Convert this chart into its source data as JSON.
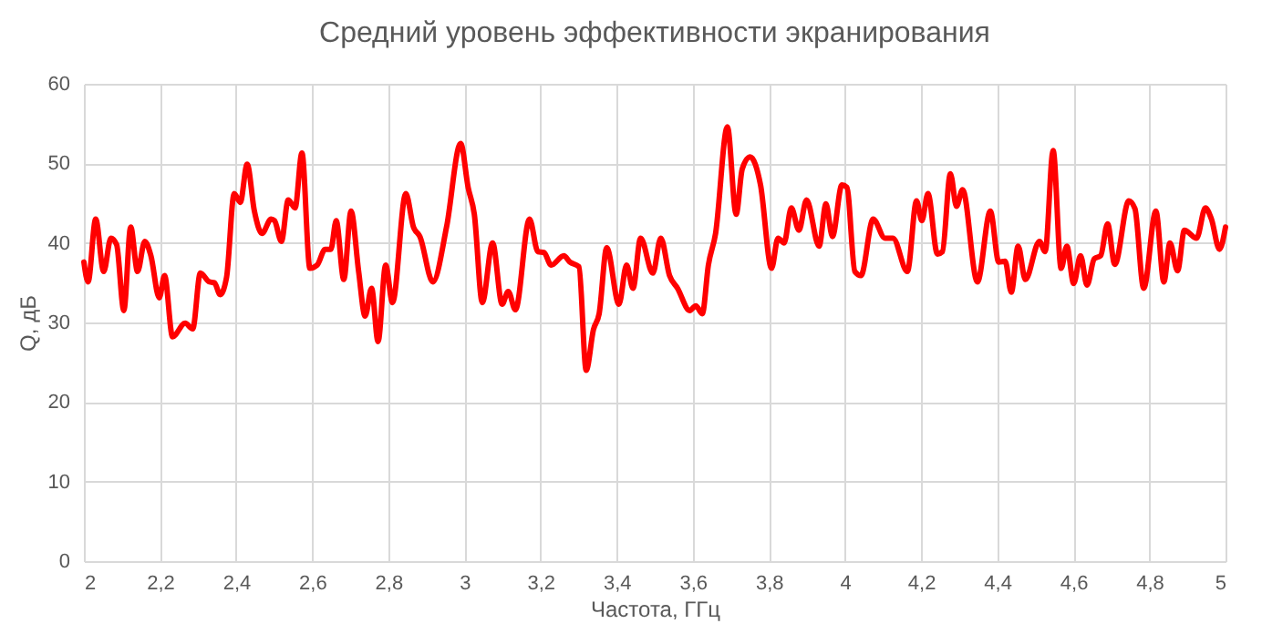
{
  "chart_data": {
    "type": "line",
    "title": "Средний уровень эффективности экранирования",
    "xlabel": "Частота, ГГц",
    "ylabel": "Q, дБ",
    "xlim": [
      2,
      5
    ],
    "ylim": [
      0,
      60
    ],
    "xticks": [
      2,
      {
        "value": 2.2,
        "label": "2,2"
      },
      {
        "value": 2.4,
        "label": "2,4"
      },
      {
        "value": 2.6,
        "label": "2,6"
      },
      {
        "value": 2.8,
        "label": "2,8"
      },
      3,
      {
        "value": 3.2,
        "label": "3,2"
      },
      {
        "value": 3.4,
        "label": "3,4"
      },
      {
        "value": 3.6,
        "label": "3,6"
      },
      {
        "value": 3.8,
        "label": "3,8"
      },
      4,
      {
        "value": 4.2,
        "label": "4,2"
      },
      {
        "value": 4.4,
        "label": "4,4"
      },
      {
        "value": 4.6,
        "label": "4,6"
      },
      {
        "value": 4.8,
        "label": "4,8"
      },
      5
    ],
    "yticks": [
      0,
      10,
      20,
      30,
      40,
      50,
      60
    ],
    "grid": true,
    "legend": false,
    "marker": "none",
    "line_style": "solid",
    "series": [
      {
        "color": "#ff0000",
        "x": [
          2.0,
          2.011,
          2.031,
          2.052,
          2.071,
          2.086,
          2.105,
          2.123,
          2.141,
          2.16,
          2.176,
          2.198,
          2.212,
          2.233,
          2.266,
          2.286,
          2.306,
          2.33,
          2.343,
          2.358,
          2.375,
          2.395,
          2.411,
          2.429,
          2.448,
          2.468,
          2.492,
          2.501,
          2.519,
          2.537,
          2.555,
          2.573,
          2.594,
          2.613,
          2.634,
          2.649,
          2.663,
          2.683,
          2.702,
          2.722,
          2.739,
          2.756,
          2.773,
          2.793,
          2.811,
          2.846,
          2.866,
          2.883,
          2.917,
          2.953,
          2.99,
          3.01,
          3.026,
          3.047,
          3.074,
          3.099,
          3.115,
          3.134,
          3.171,
          3.193,
          3.209,
          3.228,
          3.261,
          3.277,
          3.301,
          3.32,
          3.339,
          3.354,
          3.374,
          3.406,
          3.426,
          3.443,
          3.463,
          3.495,
          3.516,
          3.539,
          3.56,
          3.592,
          3.608,
          3.625,
          3.641,
          3.66,
          3.691,
          3.714,
          3.73,
          3.751,
          3.778,
          3.807,
          3.824,
          3.84,
          3.859,
          3.879,
          3.899,
          3.932,
          3.95,
          3.967,
          3.992,
          4.005,
          4.026,
          4.042,
          4.074,
          4.105,
          4.126,
          4.164,
          4.188,
          4.202,
          4.218,
          4.243,
          4.256,
          4.277,
          4.293,
          4.309,
          4.348,
          4.382,
          4.404,
          4.421,
          4.437,
          4.455,
          4.474,
          4.511,
          4.526,
          4.547,
          4.568,
          4.583,
          4.601,
          4.619,
          4.636,
          4.655,
          4.672,
          4.69,
          4.709,
          4.746,
          4.762,
          4.785,
          4.817,
          4.838,
          4.854,
          4.874,
          4.892,
          4.924,
          4.947,
          4.963,
          4.984,
          5.0
        ],
        "values": [
          37.6,
          35.1,
          43.0,
          36.4,
          40.6,
          39.8,
          31.5,
          42.0,
          36.4,
          40.2,
          38.4,
          33.1,
          35.9,
          28.2,
          29.9,
          29.2,
          36.2,
          35.1,
          35.0,
          33.5,
          35.7,
          46.2,
          45.1,
          49.9,
          44.0,
          41.2,
          43.0,
          42.8,
          40.2,
          45.4,
          44.4,
          51.3,
          36.8,
          37.2,
          39.2,
          39.2,
          42.8,
          35.4,
          44.0,
          36.4,
          30.8,
          34.3,
          27.6,
          37.2,
          32.5,
          46.2,
          42.0,
          40.8,
          35.1,
          42.0,
          52.5,
          46.9,
          43.6,
          32.5,
          40.0,
          32.3,
          33.9,
          31.6,
          43.0,
          38.9,
          38.8,
          37.2,
          38.4,
          37.6,
          37.0,
          24.0,
          29.1,
          31.1,
          39.4,
          32.3,
          37.2,
          34.3,
          40.6,
          36.2,
          40.6,
          35.9,
          34.3,
          31.5,
          32.1,
          31.1,
          37.2,
          41.2,
          54.6,
          43.6,
          49.3,
          50.8,
          47.3,
          36.8,
          40.6,
          40.0,
          44.4,
          41.6,
          45.4,
          39.6,
          44.9,
          40.8,
          47.3,
          47.0,
          36.4,
          35.9,
          43.0,
          40.6,
          40.6,
          36.4,
          45.3,
          42.8,
          46.2,
          38.6,
          38.9,
          48.7,
          44.6,
          46.7,
          35.1,
          44.0,
          37.6,
          37.7,
          33.8,
          39.6,
          35.4,
          40.2,
          38.9,
          51.6,
          36.8,
          39.6,
          34.9,
          38.4,
          34.7,
          38.0,
          38.4,
          42.4,
          37.3,
          45.3,
          44.3,
          34.3,
          44.0,
          35.1,
          40.0,
          36.5,
          41.6,
          40.6,
          44.4,
          43.0,
          39.2,
          42.0
        ]
      }
    ]
  }
}
